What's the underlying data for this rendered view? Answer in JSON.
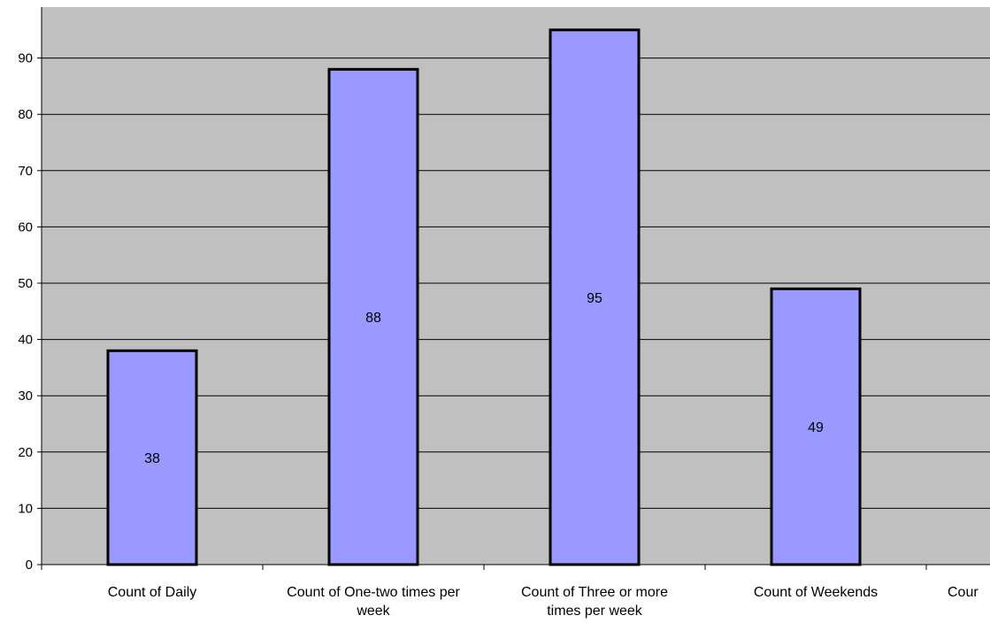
{
  "colors": {
    "plot_background": "#c0c0c0",
    "bar_fill": "#9999ff",
    "bar_stroke": "#000000",
    "gridline": "#000000"
  },
  "chart_data": {
    "type": "bar",
    "title": "",
    "xlabel": "",
    "ylabel": "",
    "ylim": [
      0,
      100
    ],
    "yticks": [
      0,
      10,
      20,
      30,
      40,
      50,
      60,
      70,
      80,
      90
    ],
    "grid": true,
    "legend": "none",
    "categories": [
      "Count of Daily",
      "Count of One-two times per week",
      "Count of Three or more times per week",
      "Count of Weekends",
      "Count of"
    ],
    "category_label_lines": [
      [
        "Count of Daily"
      ],
      [
        "Count of One-two times per",
        "week"
      ],
      [
        "Count of Three or more",
        "times per week"
      ],
      [
        "Count of Weekends"
      ],
      [
        "Cour"
      ]
    ],
    "values": [
      38,
      88,
      95,
      49,
      null
    ],
    "data_labels": [
      "38",
      "88",
      "95",
      "49",
      ""
    ]
  }
}
